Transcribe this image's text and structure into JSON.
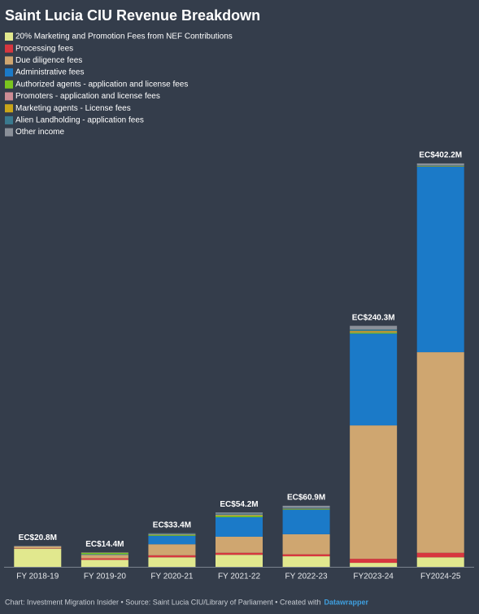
{
  "chart_data": {
    "type": "stacked_bar",
    "title": "Saint Lucia CIU Revenue Breakdown",
    "categories": [
      "FY 2018-19",
      "FY 2019-20",
      "FY 2020-21",
      "FY 2021-22",
      "FY 2022-23",
      "FY2023-24",
      "FY2024-25"
    ],
    "series": [
      {
        "name": "20% Marketing and Promotion Fees from NEF Contributions",
        "color": "#e1e88e",
        "values": [
          18.0,
          7.0,
          9.5,
          12.0,
          10.5,
          4.0,
          9.5
        ]
      },
      {
        "name": "Processing fees",
        "color": "#d7373f",
        "values": [
          0.3,
          1.5,
          2.0,
          2.0,
          2.0,
          4.0,
          4.5
        ]
      },
      {
        "name": "Due diligence fees",
        "color": "#cfa670",
        "values": [
          2.0,
          3.5,
          11.0,
          16.0,
          20.0,
          133.0,
          200.0
        ]
      },
      {
        "name": "Administrative fees",
        "color": "#1b7ac8",
        "values": [
          0,
          0.5,
          8.5,
          19.5,
          24.5,
          91.6,
          185.0
        ]
      },
      {
        "name": "Authorized agents - application and license fees",
        "color": "#7ac41f",
        "values": [
          0,
          1.5,
          1.0,
          1.5,
          0.5,
          1.0,
          0.3
        ]
      },
      {
        "name": "Promoters - application and license fees",
        "color": "#cc8c94",
        "values": [
          0,
          0.2,
          0.4,
          0.5,
          0.3,
          0.5,
          0.2
        ]
      },
      {
        "name": "Marketing agents - License fees",
        "color": "#c9a51a",
        "values": [
          0,
          0,
          0,
          0.5,
          0.3,
          1.0,
          0.2
        ]
      },
      {
        "name": "Alien Landholding - application fees",
        "color": "#3a7a8f",
        "values": [
          0,
          0,
          0.5,
          1.0,
          0.8,
          1.5,
          0.5
        ]
      },
      {
        "name": "Other income",
        "color": "#8a9099",
        "values": [
          0.5,
          0.2,
          0.5,
          1.2,
          2.0,
          3.7,
          2.0
        ]
      }
    ],
    "totals": [
      20.8,
      14.4,
      33.4,
      54.2,
      60.9,
      240.3,
      402.2
    ],
    "total_labels": [
      "EC$20.8M",
      "EC$14.4M",
      "EC$33.4M",
      "EC$54.2M",
      "EC$60.9M",
      "EC$240.3M",
      "EC$402.2M"
    ],
    "ylim": [
      0,
      420
    ],
    "footer": "Chart: Investment Migration Insider • Source: Saint Lucia CIU/Library of Parliament • Created with",
    "footer_link": "Datawrapper"
  }
}
